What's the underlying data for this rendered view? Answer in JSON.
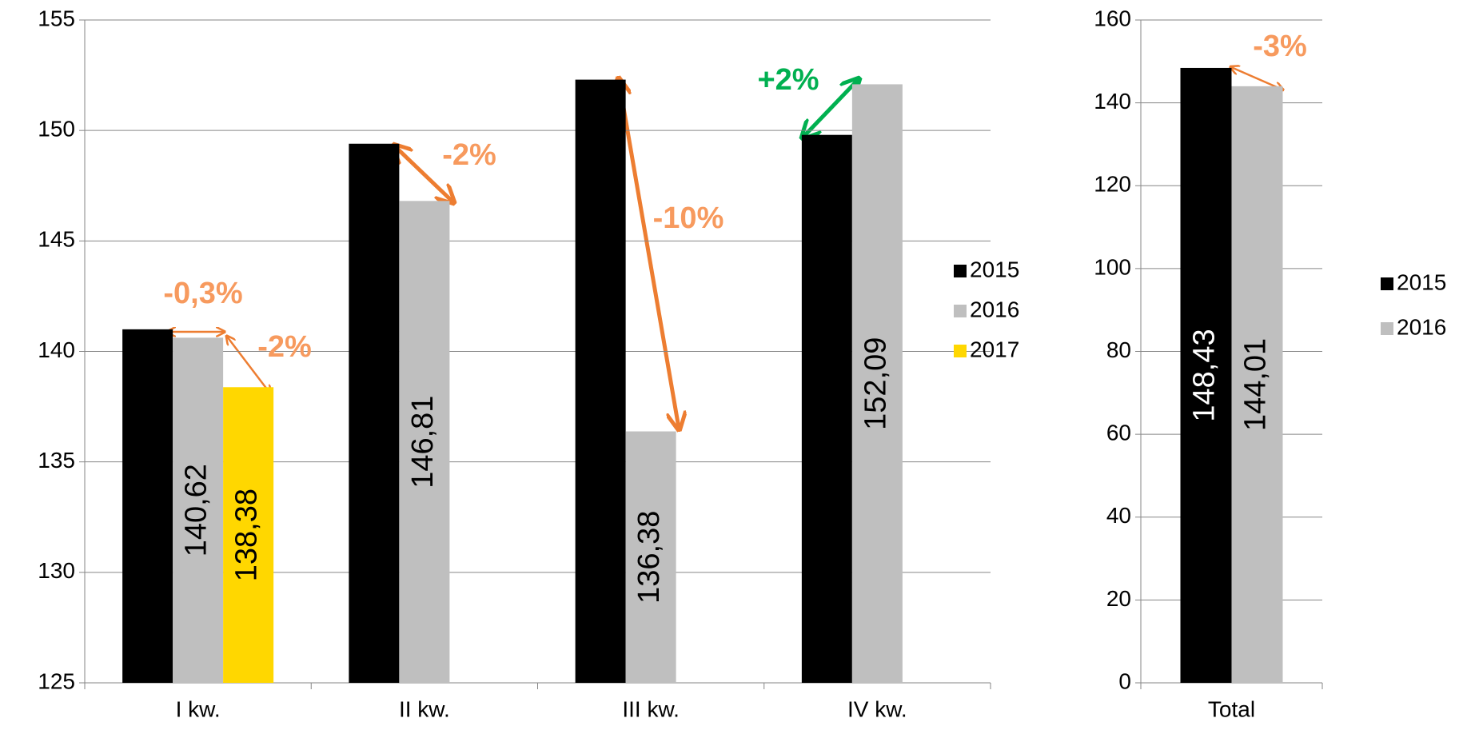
{
  "chart_data": [
    {
      "type": "bar",
      "categories": [
        "I kw.",
        "II kw.",
        "III kw.",
        "IV kw."
      ],
      "series": [
        {
          "name": "2015",
          "color": "#000000",
          "values": [
            141.0,
            149.4,
            152.3,
            149.8
          ]
        },
        {
          "name": "2016",
          "color": "#bfbfbf",
          "values": [
            140.62,
            146.81,
            136.38,
            152.09
          ],
          "value_labels": [
            "140,62",
            "146,81",
            "136,38",
            "152,09"
          ]
        },
        {
          "name": "2017",
          "color": "#ffd700",
          "values": [
            138.38,
            null,
            null,
            null
          ],
          "value_labels": [
            "138,38",
            null,
            null,
            null
          ]
        }
      ],
      "ylim": [
        125,
        155
      ],
      "yticks": [
        125,
        130,
        135,
        140,
        145,
        150,
        155
      ],
      "grid": true,
      "legend": "right",
      "annotations": [
        {
          "text": "-0,3%",
          "color": "#f79a5e"
        },
        {
          "text": "-2%",
          "color": "#f79a5e"
        },
        {
          "text": "-2%",
          "color": "#f79a5e"
        },
        {
          "text": "-10%",
          "color": "#f79a5e"
        },
        {
          "text": "+2%",
          "color": "#00b050"
        }
      ]
    },
    {
      "type": "bar",
      "categories": [
        "Total"
      ],
      "series": [
        {
          "name": "2015",
          "color": "#000000",
          "values": [
            148.43
          ],
          "value_labels": [
            "148,43"
          ]
        },
        {
          "name": "2016",
          "color": "#bfbfbf",
          "values": [
            144.01
          ],
          "value_labels": [
            "144,01"
          ]
        }
      ],
      "ylim": [
        0,
        160
      ],
      "yticks": [
        0,
        20,
        40,
        60,
        80,
        100,
        120,
        140,
        160
      ],
      "grid": true,
      "legend": "right",
      "annotations": [
        {
          "text": "-3%",
          "color": "#f79a5e"
        }
      ]
    }
  ]
}
